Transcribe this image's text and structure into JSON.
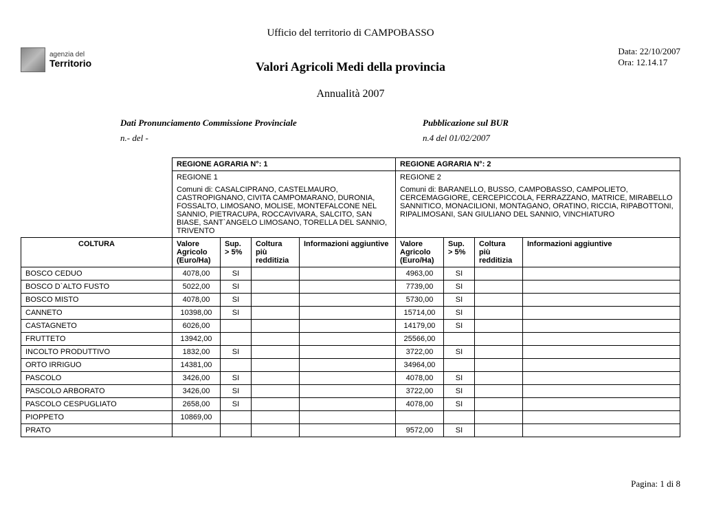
{
  "header": {
    "office": "Ufficio del territorio di  CAMPOBASSO",
    "date": "Data: 22/10/2007",
    "time": "Ora: 12.14.17",
    "title": "Valori Agricoli Medi della provincia",
    "subtitle": "Annualità  2007",
    "logo_small": "agenzia del",
    "logo_big": "Territorio"
  },
  "meta": {
    "left_label": "Dati Pronunciamento Commissione Provinciale",
    "right_label": "Pubblicazione sul BUR",
    "left_val": "n.- del  -",
    "right_val": "n.4  del 01/02/2007"
  },
  "regions": {
    "r1_header": "REGIONE AGRARIA N°:  1",
    "r2_header": "REGIONE AGRARIA N°: 2",
    "r1_name": "REGIONE 1",
    "r2_name": "REGIONE 2",
    "r1_comuni": "Comuni di: CASALCIPRANO, CASTELMAURO, CASTROPIGNANO, CIVITA CAMPOMARANO, DURONIA, FOSSALTO, LIMOSANO, MOLISE, MONTEFALCONE NEL SANNIO, PIETRACUPA, ROCCAVIVARA, SALCITO, SAN BIASE, SANT`ANGELO LIMOSANO, TORELLA DEL SANNIO, TRIVENTO",
    "r2_comuni": "Comuni di: BARANELLO, BUSSO, CAMPOBASSO, CAMPOLIETO, CERCEMAGGIORE, CERCEPICCOLA, FERRAZZANO, MATRICE, MIRABELLO SANNITICO, MONACILIONI, MONTAGANO, ORATINO, RICCIA, RIPABOTTONI, RIPALIMOSANI, SAN GIULIANO DEL SANNIO, VINCHIATURO"
  },
  "columns": {
    "coltura": "COLTURA",
    "valore": "Valore Agricolo (Euro/Ha)",
    "sup": "Sup. > 5%",
    "reddit": "Coltura più redditizia",
    "info": "Informazioni aggiuntive"
  },
  "rows": [
    {
      "name": "BOSCO CEDUO",
      "v1": "4078,00",
      "s1": "SI",
      "v2": "4963,00",
      "s2": "SI"
    },
    {
      "name": "BOSCO D`ALTO FUSTO",
      "v1": "5022,00",
      "s1": "SI",
      "v2": "7739,00",
      "s2": "SI"
    },
    {
      "name": "BOSCO MISTO",
      "v1": "4078,00",
      "s1": "SI",
      "v2": "5730,00",
      "s2": "SI"
    },
    {
      "name": "CANNETO",
      "v1": "10398,00",
      "s1": "SI",
      "v2": "15714,00",
      "s2": "SI"
    },
    {
      "name": "CASTAGNETO",
      "v1": "6026,00",
      "s1": "",
      "v2": "14179,00",
      "s2": "SI"
    },
    {
      "name": "FRUTTETO",
      "v1": "13942,00",
      "s1": "",
      "v2": "25566,00",
      "s2": ""
    },
    {
      "name": "INCOLTO PRODUTTIVO",
      "v1": "1832,00",
      "s1": "SI",
      "v2": "3722,00",
      "s2": "SI"
    },
    {
      "name": "ORTO IRRIGUO",
      "v1": "14381,00",
      "s1": "",
      "v2": "34964,00",
      "s2": ""
    },
    {
      "name": "PASCOLO",
      "v1": "3426,00",
      "s1": "SI",
      "v2": "4078,00",
      "s2": "SI"
    },
    {
      "name": "PASCOLO ARBORATO",
      "v1": "3426,00",
      "s1": "SI",
      "v2": "3722,00",
      "s2": "SI"
    },
    {
      "name": "PASCOLO CESPUGLIATO",
      "v1": "2658,00",
      "s1": "SI",
      "v2": "4078,00",
      "s2": "SI"
    },
    {
      "name": "PIOPPETO",
      "v1": "10869,00",
      "s1": "",
      "v2": "",
      "s2": ""
    },
    {
      "name": "PRATO",
      "v1": "",
      "s1": "",
      "v2": "9572,00",
      "s2": "SI"
    }
  ],
  "footer": {
    "page": "Pagina: 1 di 8"
  }
}
